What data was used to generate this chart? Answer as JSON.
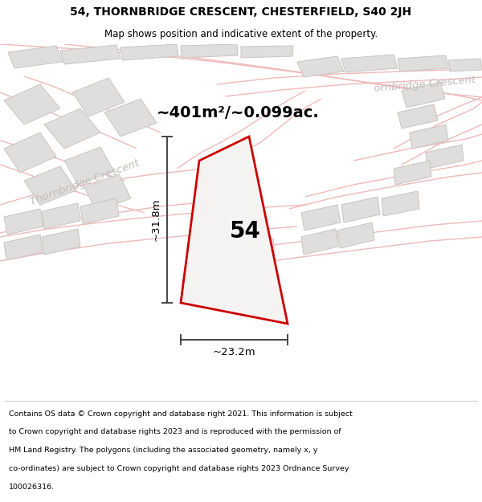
{
  "title": "54, THORNBRIDGE CRESCENT, CHESTERFIELD, S40 2JH",
  "subtitle": "Map shows position and indicative extent of the property.",
  "area_label": "~401m²/~0.099ac.",
  "number_label": "54",
  "dim_width": "~23.2m",
  "dim_height": "~31.8m",
  "street_label1": "Thornbridge Crescent",
  "street_label2": "ornbridge Crescent",
  "footer_lines": [
    "Contains OS data © Crown copyright and database right 2021. This information is subject",
    "to Crown copyright and database rights 2023 and is reproduced with the permission of",
    "HM Land Registry. The polygons (including the associated geometry, namely x, y",
    "co-ordinates) are subject to Crown copyright and database rights 2023 Ordnance Survey",
    "100026316."
  ],
  "bg_color": "#ffffff",
  "map_bg": "#ffffff",
  "block_fill": "#e0dedc",
  "block_edge": "#c8c4c0",
  "road_line_color": "#f0b8b8",
  "prop_fill": "#f5f3f1",
  "prop_edge": "#cc0000",
  "dim_color": "#444444",
  "street_text_color": "#c0bcb8"
}
